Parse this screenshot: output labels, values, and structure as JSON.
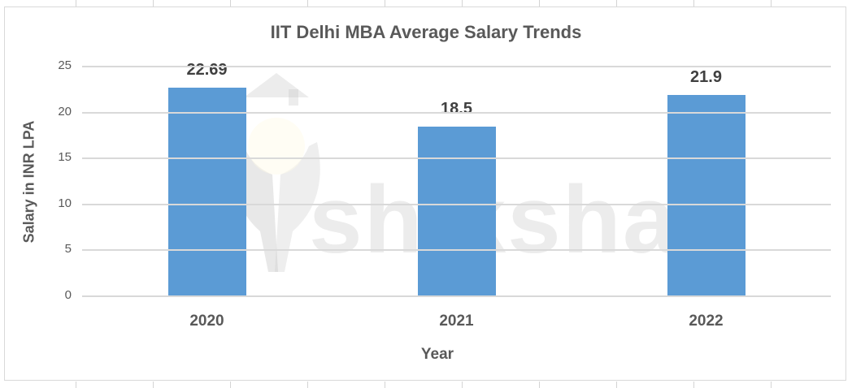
{
  "chart_data": {
    "type": "bar",
    "title": "IIT Delhi MBA Average Salary Trends",
    "xlabel": "Year",
    "ylabel": "Salary in INR LPA",
    "categories": [
      "2020",
      "2021",
      "2022"
    ],
    "values": [
      22.69,
      18.5,
      21.9
    ],
    "data_labels": [
      "22.69",
      "18.5",
      "21.9"
    ],
    "ylim": [
      0,
      25
    ],
    "yticks": [
      "0",
      "5",
      "10",
      "15",
      "20",
      "25"
    ],
    "grid": true,
    "legend": null,
    "bar_color": "#5b9bd5"
  },
  "watermark": {
    "text": "shiksha"
  }
}
